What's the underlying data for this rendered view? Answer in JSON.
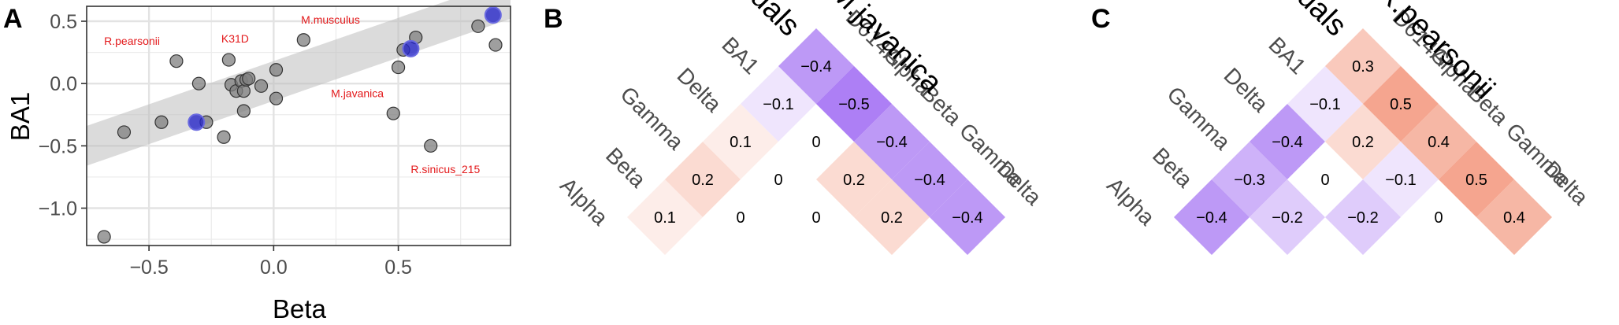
{
  "panels": {
    "A": {
      "letter": "A",
      "chart_data": {
        "type": "scatter",
        "xlabel": "Beta",
        "ylabel": "BA1",
        "xlim": [
          -0.75,
          0.95
        ],
        "ylim": [
          -1.3,
          0.62
        ],
        "xticks": [
          -0.5,
          0.0,
          0.5
        ],
        "xtick_labels": [
          "−0.5",
          "0.0",
          "0.5"
        ],
        "yticks": [
          -1.0,
          -0.5,
          0.0,
          0.5
        ],
        "ytick_labels": [
          "−1.0",
          "−0.5",
          "0.0",
          "0.5"
        ],
        "grid": true,
        "band": {
          "x1": -0.75,
          "y1_lo": -0.66,
          "y1_hi": -0.34,
          "x2": 0.95,
          "y2_lo": 0.52,
          "y2_hi": 0.84
        },
        "points": [
          {
            "x": -0.68,
            "y": -1.23
          },
          {
            "x": -0.6,
            "y": -0.39
          },
          {
            "x": -0.45,
            "y": -0.31
          },
          {
            "x": -0.39,
            "y": 0.18
          },
          {
            "x": -0.3,
            "y": -0.0
          },
          {
            "x": -0.27,
            "y": -0.31
          },
          {
            "x": -0.2,
            "y": -0.43
          },
          {
            "x": -0.18,
            "y": 0.19
          },
          {
            "x": -0.17,
            "y": -0.01
          },
          {
            "x": -0.15,
            "y": -0.06
          },
          {
            "x": -0.13,
            "y": 0.02
          },
          {
            "x": -0.12,
            "y": -0.06
          },
          {
            "x": -0.11,
            "y": 0.03
          },
          {
            "x": -0.1,
            "y": 0.04
          },
          {
            "x": -0.12,
            "y": -0.22
          },
          {
            "x": -0.05,
            "y": -0.02
          },
          {
            "x": 0.01,
            "y": -0.12
          },
          {
            "x": 0.01,
            "y": 0.11
          },
          {
            "x": 0.12,
            "y": 0.35
          },
          {
            "x": 0.48,
            "y": -0.24
          },
          {
            "x": 0.5,
            "y": 0.13
          },
          {
            "x": 0.52,
            "y": 0.27
          },
          {
            "x": 0.57,
            "y": 0.37
          },
          {
            "x": 0.63,
            "y": -0.5
          },
          {
            "x": 0.82,
            "y": 0.46
          },
          {
            "x": 0.89,
            "y": 0.31
          }
        ],
        "highlighted_points": [
          {
            "x": -0.31,
            "y": -0.31
          },
          {
            "x": 0.55,
            "y": 0.28
          },
          {
            "x": 0.88,
            "y": 0.55
          }
        ],
        "annotations": [
          {
            "text": "R.pearsonii",
            "x": -0.68,
            "y": 0.31
          },
          {
            "text": "K31D",
            "x": -0.21,
            "y": 0.33
          },
          {
            "text": "M.musculus",
            "x": 0.11,
            "y": 0.48
          },
          {
            "text": "M.javanica",
            "x": 0.23,
            "y": -0.11
          },
          {
            "text": "R.sinicus_215",
            "x": 0.55,
            "y": -0.72
          }
        ]
      }
    },
    "B": {
      "letter": "B",
      "chart_data": {
        "type": "heatmap",
        "title": "M.javanica",
        "row_vars": [
          "Alpha",
          "Beta",
          "Gamma",
          "Delta",
          "BA1",
          "Residuals"
        ],
        "col_vars": [
          "D614G",
          "Alpha",
          "Beta",
          "Gamma",
          "Delta"
        ],
        "color_low": "#8c4bf0",
        "color_mid": "#ffffff",
        "color_high": "#f08060",
        "value_range": [
          -0.6,
          0.6
        ],
        "cells": [
          {
            "row": 1,
            "col": 0,
            "value": 0.1,
            "label": "0.1"
          },
          {
            "row": 2,
            "col": 0,
            "value": 0.2,
            "label": "0.2"
          },
          {
            "row": 3,
            "col": 0,
            "value": 0.1,
            "label": "0.1"
          },
          {
            "row": 4,
            "col": 0,
            "value": -0.1,
            "label": "−0.1"
          },
          {
            "row": 5,
            "col": 0,
            "value": -0.4,
            "label": "−0.4"
          },
          {
            "row": 2,
            "col": 1,
            "value": 0.0,
            "label": "0"
          },
          {
            "row": 3,
            "col": 1,
            "value": 0.0,
            "label": "0"
          },
          {
            "row": 4,
            "col": 1,
            "value": 0.0,
            "label": "0"
          },
          {
            "row": 5,
            "col": 1,
            "value": -0.5,
            "label": "−0.5"
          },
          {
            "row": 3,
            "col": 2,
            "value": 0.0,
            "label": "0"
          },
          {
            "row": 4,
            "col": 2,
            "value": 0.2,
            "label": "0.2"
          },
          {
            "row": 5,
            "col": 2,
            "value": -0.4,
            "label": "−0.4"
          },
          {
            "row": 4,
            "col": 3,
            "value": 0.2,
            "label": "0.2"
          },
          {
            "row": 5,
            "col": 3,
            "value": -0.4,
            "label": "−0.4"
          },
          {
            "row": 5,
            "col": 4,
            "value": -0.4,
            "label": "−0.4"
          }
        ]
      }
    },
    "C": {
      "letter": "C",
      "chart_data": {
        "type": "heatmap",
        "title": "R.pearsonii",
        "row_vars": [
          "Alpha",
          "Beta",
          "Gamma",
          "Delta",
          "BA1",
          "Residuals"
        ],
        "col_vars": [
          "D614G",
          "Alpha",
          "Beta",
          "Gamma",
          "Delta"
        ],
        "color_low": "#8c4bf0",
        "color_mid": "#ffffff",
        "color_high": "#f08060",
        "value_range": [
          -0.6,
          0.6
        ],
        "cells": [
          {
            "row": 1,
            "col": 0,
            "value": -0.4,
            "label": "−0.4"
          },
          {
            "row": 2,
            "col": 0,
            "value": -0.3,
            "label": "−0.3"
          },
          {
            "row": 3,
            "col": 0,
            "value": -0.4,
            "label": "−0.4"
          },
          {
            "row": 4,
            "col": 0,
            "value": -0.1,
            "label": "−0.1"
          },
          {
            "row": 5,
            "col": 0,
            "value": 0.3,
            "label": "0.3"
          },
          {
            "row": 2,
            "col": 1,
            "value": -0.2,
            "label": "−0.2"
          },
          {
            "row": 3,
            "col": 1,
            "value": 0.0,
            "label": "0"
          },
          {
            "row": 4,
            "col": 1,
            "value": 0.2,
            "label": "0.2"
          },
          {
            "row": 5,
            "col": 1,
            "value": 0.5,
            "label": "0.5"
          },
          {
            "row": 3,
            "col": 2,
            "value": -0.2,
            "label": "−0.2"
          },
          {
            "row": 4,
            "col": 2,
            "value": -0.1,
            "label": "−0.1"
          },
          {
            "row": 5,
            "col": 2,
            "value": 0.4,
            "label": "0.4"
          },
          {
            "row": 4,
            "col": 3,
            "value": 0.0,
            "label": "0"
          },
          {
            "row": 5,
            "col": 3,
            "value": 0.5,
            "label": "0.5"
          },
          {
            "row": 5,
            "col": 4,
            "value": 0.4,
            "label": "0.4"
          }
        ]
      }
    }
  }
}
